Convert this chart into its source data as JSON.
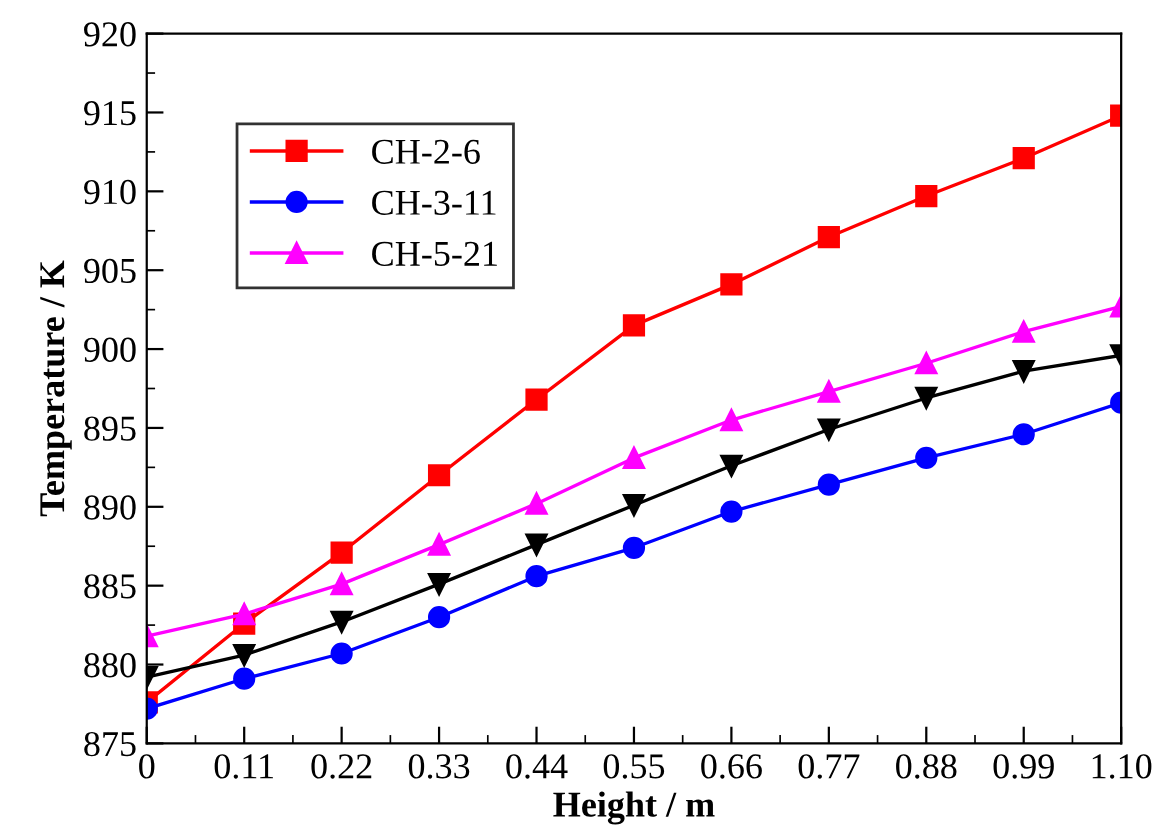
{
  "chart_data": {
    "type": "line",
    "xlabel": "Height / m",
    "ylabel": "Temperature / K",
    "x": [
      0,
      0.11,
      0.22,
      0.33,
      0.44,
      0.55,
      0.66,
      0.77,
      0.88,
      0.99,
      1.1
    ],
    "series": [
      {
        "name": "CH-2-6",
        "color": "#ff0000",
        "marker": "square",
        "values": [
          877.6,
          882.6,
          887.1,
          892.0,
          896.8,
          901.5,
          904.1,
          907.1,
          909.7,
          912.1,
          914.8
        ]
      },
      {
        "name": "CH-3-11",
        "color": "#0000ff",
        "marker": "circle",
        "values": [
          877.2,
          879.1,
          880.7,
          883.0,
          885.6,
          887.4,
          889.7,
          891.4,
          893.1,
          894.6,
          896.6
        ]
      },
      {
        "name": "CH-5-21",
        "color": "#ff00ff",
        "marker": "triangle",
        "values": [
          881.8,
          883.2,
          885.1,
          887.6,
          890.2,
          893.1,
          895.5,
          897.3,
          899.1,
          901.1,
          902.7
        ]
      },
      {
        "color": "#000000",
        "marker": "triangle_down",
        "values": [
          879.2,
          880.6,
          882.7,
          885.1,
          887.6,
          890.1,
          892.6,
          894.9,
          896.9,
          898.6,
          899.6
        ]
      }
    ],
    "xlim": [
      0,
      1.1
    ],
    "xticks": [
      0,
      0.11,
      0.22,
      0.33,
      0.44,
      0.55,
      0.66,
      0.77,
      0.88,
      0.99,
      {
        "value": 1.1,
        "label": "1.10"
      }
    ],
    "ylim": [
      875,
      920
    ],
    "yticks": [
      875,
      880,
      885,
      890,
      895,
      900,
      905,
      910,
      915,
      920
    ],
    "grid": false,
    "legend": "top left",
    "line_style": "solid"
  }
}
